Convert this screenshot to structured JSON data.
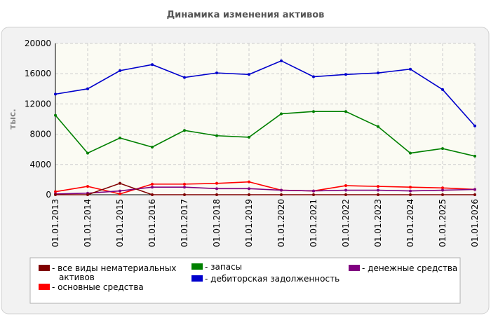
{
  "chart_data": {
    "type": "line",
    "title": "Динамика изменения активов",
    "ylabel": "тыс.",
    "xlabel": "",
    "ylim": [
      0,
      20000
    ],
    "yticks": [
      0,
      4000,
      8000,
      12000,
      16000,
      20000
    ],
    "grid": true,
    "legend_position": "bottom",
    "categories": [
      "01.01.2013",
      "01.01.2014",
      "01.01.2015",
      "01.01.2016",
      "01.01.2017",
      "01.01.2018",
      "01.01.2019",
      "01.01.2020",
      "01.01.2021",
      "01.01.2022",
      "01.01.2023",
      "01.01.2024",
      "01.01.2025",
      "01.01.2026"
    ],
    "series": [
      {
        "name": "дебиторская задолженность",
        "color": "#0000cc",
        "values": [
          13300,
          14000,
          16400,
          17200,
          15500,
          16100,
          15900,
          17700,
          15600,
          15900,
          16100,
          16600,
          13900,
          9100
        ]
      },
      {
        "name": "запасы",
        "color": "#008000",
        "values": [
          10500,
          5500,
          7500,
          6300,
          8500,
          7800,
          7600,
          10700,
          11000,
          11000,
          9000,
          5500,
          6100,
          5100
        ]
      },
      {
        "name": "основные средства",
        "color": "#ff0000",
        "values": [
          400,
          1100,
          100,
          1400,
          1400,
          1500,
          1700,
          600,
          500,
          1200,
          1100,
          1000,
          900,
          700
        ]
      },
      {
        "name": "денежные средства",
        "color": "#800080",
        "values": [
          100,
          200,
          500,
          1000,
          1000,
          800,
          800,
          600,
          500,
          600,
          600,
          500,
          600,
          700
        ]
      },
      {
        "name": "все виды нематериальных активов",
        "color": "#800000",
        "values": [
          0,
          0,
          1500,
          0,
          0,
          0,
          0,
          0,
          0,
          0,
          0,
          0,
          0,
          0
        ]
      }
    ],
    "legend": [
      {
        "label": "- все виды нематериальных активов",
        "color": "#800000"
      },
      {
        "label": "- запасы",
        "color": "#008000"
      },
      {
        "label": "- денежные средства",
        "color": "#800080"
      },
      {
        "label": "- основные средства",
        "color": "#ff0000"
      },
      {
        "label": "- дебиторская задолженность",
        "color": "#0000cc"
      }
    ]
  }
}
